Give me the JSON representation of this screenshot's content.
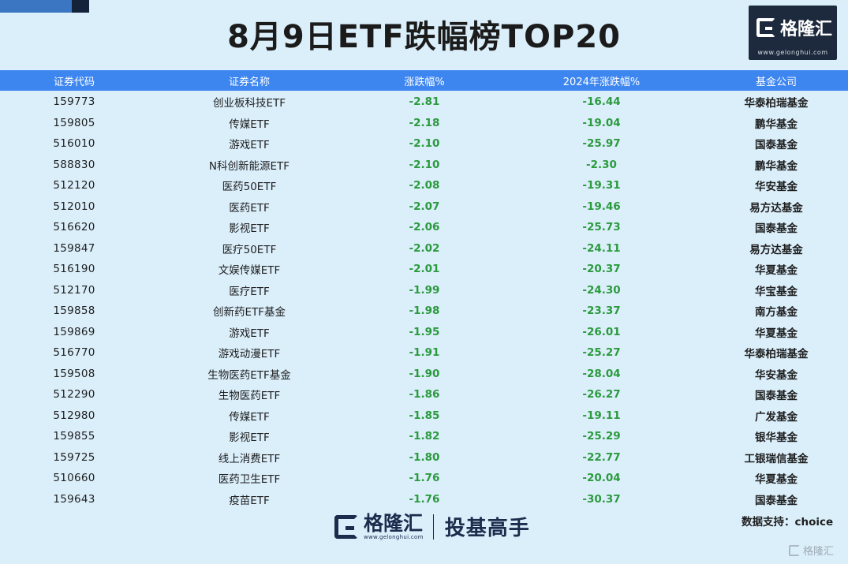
{
  "title": "8月9日ETF跌幅榜TOP20",
  "logo": {
    "text": "格隆汇",
    "url": "www.gelonghui.com"
  },
  "table": {
    "headers": [
      "证券代码",
      "证券名称",
      "涨跌幅%",
      "2024年涨跌幅%",
      "基金公司"
    ],
    "rows": [
      [
        "159773",
        "创业板科技ETF",
        "-2.81",
        "-16.44",
        "华泰柏瑞基金"
      ],
      [
        "159805",
        "传媒ETF",
        "-2.18",
        "-19.04",
        "鹏华基金"
      ],
      [
        "516010",
        "游戏ETF",
        "-2.10",
        "-25.97",
        "国泰基金"
      ],
      [
        "588830",
        "N科创新能源ETF",
        "-2.10",
        "-2.30",
        "鹏华基金"
      ],
      [
        "512120",
        "医药50ETF",
        "-2.08",
        "-19.31",
        "华安基金"
      ],
      [
        "512010",
        "医药ETF",
        "-2.07",
        "-19.46",
        "易方达基金"
      ],
      [
        "516620",
        "影视ETF",
        "-2.06",
        "-25.73",
        "国泰基金"
      ],
      [
        "159847",
        "医疗50ETF",
        "-2.02",
        "-24.11",
        "易方达基金"
      ],
      [
        "516190",
        "文娱传媒ETF",
        "-2.01",
        "-20.37",
        "华夏基金"
      ],
      [
        "512170",
        "医疗ETF",
        "-1.99",
        "-24.30",
        "华宝基金"
      ],
      [
        "159858",
        "创新药ETF基金",
        "-1.98",
        "-23.37",
        "南方基金"
      ],
      [
        "159869",
        "游戏ETF",
        "-1.95",
        "-26.01",
        "华夏基金"
      ],
      [
        "516770",
        "游戏动漫ETF",
        "-1.91",
        "-25.27",
        "华泰柏瑞基金"
      ],
      [
        "159508",
        "生物医药ETF基金",
        "-1.90",
        "-28.04",
        "华安基金"
      ],
      [
        "512290",
        "生物医药ETF",
        "-1.86",
        "-26.27",
        "国泰基金"
      ],
      [
        "512980",
        "传媒ETF",
        "-1.85",
        "-19.11",
        "广发基金"
      ],
      [
        "159855",
        "影视ETF",
        "-1.82",
        "-25.29",
        "银华基金"
      ],
      [
        "159725",
        "线上消费ETF",
        "-1.80",
        "-22.77",
        "工银瑞信基金"
      ],
      [
        "510660",
        "医药卫生ETF",
        "-1.76",
        "-20.04",
        "华夏基金"
      ],
      [
        "159643",
        "疫苗ETF",
        "-1.76",
        "-30.37",
        "国泰基金"
      ]
    ]
  },
  "footer": {
    "brand": "格隆汇",
    "brand_url": "www.gelonghui.com",
    "slogan": "投基高手",
    "source": "数据支持：choice"
  },
  "watermark": "格隆汇",
  "colors": {
    "background": "#dbeffb",
    "header": "#3d86f0",
    "negative": "#2b9a3d",
    "logo_bg": "#1d2a3d"
  }
}
